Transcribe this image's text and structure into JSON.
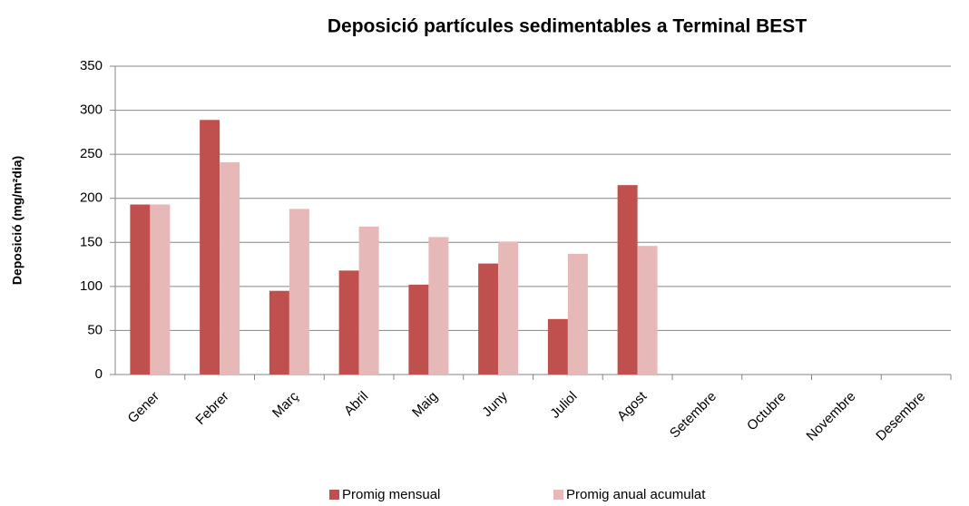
{
  "chart_data": {
    "type": "bar",
    "title": "Deposició partícules sedimentables a Terminal BEST",
    "y_label": "Deposició (mg/m²dia)",
    "categories": [
      "Gener",
      "Febrer",
      "Març",
      "Abril",
      "Maig",
      "Juny",
      "Juliol",
      "Agost",
      "Setembre",
      "Octubre",
      "Novembre",
      "Desembre"
    ],
    "series": [
      {
        "name": "Promig mensual",
        "color": "#c0504d",
        "values": [
          193,
          289,
          95,
          118,
          102,
          126,
          63,
          215,
          null,
          null,
          null,
          null
        ]
      },
      {
        "name": "Promig anual acumulat",
        "color": "#e6b9b8",
        "values": [
          193,
          241,
          188,
          168,
          156,
          151,
          137,
          146,
          null,
          null,
          null,
          null
        ]
      }
    ],
    "ylim": [
      0,
      350
    ],
    "yticks": [
      0,
      50,
      100,
      150,
      200,
      250,
      300,
      350
    ],
    "grid": true,
    "legend": "bottom"
  }
}
